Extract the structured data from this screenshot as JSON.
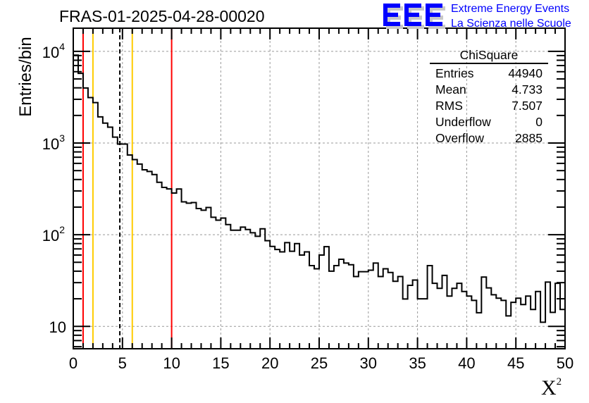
{
  "chart_data": {
    "type": "bar",
    "histogram_style": "step",
    "title": "FRAS-01-2025-04-28-00020",
    "xlabel": "X",
    "xlabel_superscript": "2",
    "ylabel": "Entries/bin",
    "xlim": [
      0,
      50
    ],
    "ylim": [
      5.7,
      17900
    ],
    "yscale": "log",
    "grid": true,
    "bin_width": 0.5,
    "x_ticks": [
      "0",
      "5",
      "10",
      "15",
      "20",
      "25",
      "30",
      "35",
      "40",
      "45",
      "50"
    ],
    "y_ticks": [
      {
        "base": "10",
        "exp": "4",
        "value": 10000
      },
      {
        "base": "10",
        "exp": "3",
        "value": 1000
      },
      {
        "base": "10",
        "exp": "2",
        "value": 100
      },
      {
        "base": "10",
        "exp": "",
        "value": 10
      }
    ],
    "values": [
      9100,
      5750,
      3990,
      3130,
      2760,
      1930,
      1650,
      1490,
      1160,
      975,
      975,
      740,
      660,
      590,
      510,
      490,
      453,
      373,
      328,
      316,
      285,
      315,
      228,
      221,
      224,
      193,
      185,
      198,
      155,
      144,
      152,
      129,
      112,
      112,
      121,
      114,
      105,
      96,
      116,
      86,
      74.5,
      69,
      65,
      82,
      66,
      80,
      60,
      65,
      46,
      42.5,
      60,
      74,
      40,
      46,
      54,
      49,
      47,
      35,
      39.5,
      39.5,
      41,
      49,
      35,
      42.5,
      38.7,
      31,
      35,
      19.9,
      28,
      32,
      20,
      20,
      46,
      29.5,
      26,
      36,
      21.4,
      26,
      29.5,
      24,
      21.4,
      19.2,
      14.1,
      34.5,
      26.3,
      22.1,
      20.3,
      19.2,
      13,
      18.3,
      20.3,
      17.3,
      21.4,
      15.3,
      24,
      11.1,
      30.4,
      14.2,
      29.5,
      15.3
    ],
    "markers": [
      {
        "x": 1,
        "color": "#ff0000",
        "style": "solid"
      },
      {
        "x": 2,
        "color": "#ffcc00",
        "style": "solid"
      },
      {
        "x": 4.733,
        "color": "#000000",
        "style": "dashed"
      },
      {
        "x": 6,
        "color": "#ffcc00",
        "style": "solid"
      },
      {
        "x": 10,
        "color": "#ff0000",
        "style": "solid"
      }
    ],
    "stats": {
      "name": "ChiSquare",
      "rows": [
        {
          "label": "Entries",
          "value": "44940"
        },
        {
          "label": "Mean",
          "value": "4.733"
        },
        {
          "label": "RMS",
          "value": "7.507"
        },
        {
          "label": "Underflow",
          "value": "0"
        },
        {
          "label": "Overflow",
          "value": "2885"
        }
      ]
    }
  },
  "logo": {
    "text": "EEE",
    "line1": "Extreme Energy Events",
    "line2": "La Scienza nelle Scuole",
    "color": "#0000ff"
  }
}
